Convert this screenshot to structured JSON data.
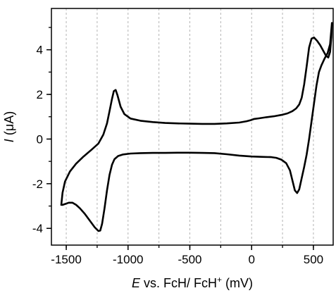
{
  "chart_data": {
    "type": "line",
    "title": "",
    "xlabel": {
      "var": "E",
      "text": " vs. FcH/ FcH",
      "sup": "+",
      "unit": " (mV)"
    },
    "ylabel": {
      "var": "I",
      "unit": " (μA)"
    },
    "xlim": [
      -1620,
      660
    ],
    "ylim": [
      -4.75,
      5.85
    ],
    "x_ticks": [
      -1500,
      -1000,
      -500,
      0,
      500
    ],
    "x_tick_labels": [
      "-1500",
      "-1000",
      "-500",
      "0",
      "500"
    ],
    "y_ticks": [
      -4,
      -2,
      0,
      2,
      4
    ],
    "y_tick_labels": [
      "-4",
      "-2",
      "0",
      "2",
      "4"
    ],
    "grid": "vertical dashed",
    "legend": "none",
    "line_color": "#000000",
    "grid_color": "#b4b4b4",
    "series": [
      {
        "points": [
          [
            -1530,
            -2.95
          ],
          [
            -1505,
            -2.9
          ],
          [
            -1480,
            -2.85
          ],
          [
            -1450,
            -2.85
          ],
          [
            -1420,
            -2.95
          ],
          [
            -1390,
            -3.1
          ],
          [
            -1350,
            -3.35
          ],
          [
            -1310,
            -3.65
          ],
          [
            -1270,
            -3.95
          ],
          [
            -1240,
            -4.12
          ],
          [
            -1225,
            -4.1
          ],
          [
            -1210,
            -3.8
          ],
          [
            -1190,
            -3.1
          ],
          [
            -1170,
            -2.3
          ],
          [
            -1150,
            -1.6
          ],
          [
            -1130,
            -1.15
          ],
          [
            -1110,
            -0.9
          ],
          [
            -1080,
            -0.76
          ],
          [
            -1040,
            -0.69
          ],
          [
            -980,
            -0.65
          ],
          [
            -900,
            -0.63
          ],
          [
            -800,
            -0.62
          ],
          [
            -700,
            -0.62
          ],
          [
            -600,
            -0.61
          ],
          [
            -500,
            -0.61
          ],
          [
            -400,
            -0.62
          ],
          [
            -300,
            -0.63
          ],
          [
            -200,
            -0.68
          ],
          [
            -100,
            -0.74
          ],
          [
            0,
            -0.78
          ],
          [
            100,
            -0.8
          ],
          [
            160,
            -0.81
          ],
          [
            200,
            -0.84
          ],
          [
            240,
            -0.92
          ],
          [
            280,
            -1.08
          ],
          [
            310,
            -1.4
          ],
          [
            330,
            -1.85
          ],
          [
            350,
            -2.3
          ],
          [
            368,
            -2.42
          ],
          [
            385,
            -2.25
          ],
          [
            405,
            -1.75
          ],
          [
            425,
            -1.25
          ],
          [
            445,
            -0.7
          ],
          [
            465,
            0.0
          ],
          [
            485,
            0.8
          ],
          [
            505,
            1.6
          ],
          [
            525,
            2.4
          ],
          [
            545,
            3.0
          ],
          [
            565,
            3.3
          ],
          [
            590,
            3.6
          ],
          [
            615,
            3.85
          ],
          [
            635,
            4.25
          ],
          [
            650,
            5.2
          ],
          [
            645,
            4.55
          ],
          [
            635,
            3.9
          ],
          [
            620,
            3.65
          ],
          [
            600,
            3.75
          ],
          [
            580,
            3.95
          ],
          [
            555,
            4.2
          ],
          [
            530,
            4.4
          ],
          [
            505,
            4.55
          ],
          [
            485,
            4.5
          ],
          [
            465,
            4.1
          ],
          [
            445,
            3.25
          ],
          [
            425,
            2.45
          ],
          [
            405,
            1.85
          ],
          [
            385,
            1.55
          ],
          [
            360,
            1.37
          ],
          [
            330,
            1.25
          ],
          [
            290,
            1.15
          ],
          [
            240,
            1.08
          ],
          [
            180,
            1.02
          ],
          [
            120,
            0.98
          ],
          [
            60,
            0.93
          ],
          [
            20,
            0.9
          ],
          [
            0,
            0.86
          ],
          [
            -40,
            0.8
          ],
          [
            -100,
            0.74
          ],
          [
            -200,
            0.7
          ],
          [
            -300,
            0.68
          ],
          [
            -400,
            0.68
          ],
          [
            -500,
            0.69
          ],
          [
            -600,
            0.7
          ],
          [
            -700,
            0.72
          ],
          [
            -800,
            0.76
          ],
          [
            -900,
            0.82
          ],
          [
            -980,
            0.92
          ],
          [
            -1030,
            1.12
          ],
          [
            -1060,
            1.45
          ],
          [
            -1085,
            1.95
          ],
          [
            -1100,
            2.2
          ],
          [
            -1115,
            2.15
          ],
          [
            -1130,
            1.8
          ],
          [
            -1150,
            1.25
          ],
          [
            -1170,
            0.7
          ],
          [
            -1200,
            0.2
          ],
          [
            -1240,
            -0.2
          ],
          [
            -1300,
            -0.5
          ],
          [
            -1360,
            -0.78
          ],
          [
            -1420,
            -1.1
          ],
          [
            -1470,
            -1.45
          ],
          [
            -1510,
            -1.9
          ],
          [
            -1530,
            -2.4
          ],
          [
            -1540,
            -2.95
          ]
        ]
      }
    ]
  }
}
